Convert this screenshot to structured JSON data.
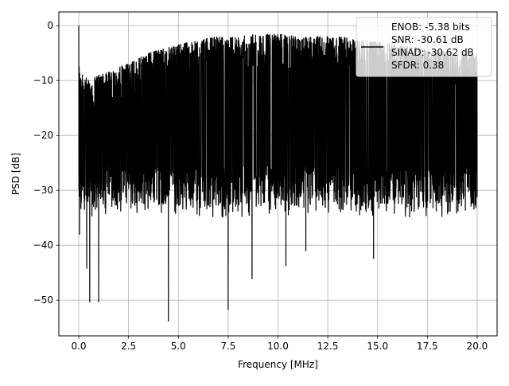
{
  "chart_data": {
    "type": "line",
    "title": "",
    "xlabel": "Frequency [MHz]",
    "ylabel": "PSD [dB]",
    "xlim": [
      -1.0,
      21.0
    ],
    "ylim": [
      -56.5,
      2.5
    ],
    "xticks": [
      0.0,
      2.5,
      5.0,
      7.5,
      10.0,
      12.5,
      15.0,
      17.5,
      20.0
    ],
    "xtick_labels": [
      "0.0",
      "2.5",
      "5.0",
      "7.5",
      "10.0",
      "12.5",
      "15.0",
      "17.5",
      "20.0"
    ],
    "yticks": [
      0,
      -10,
      -20,
      -30,
      -40,
      -50
    ],
    "ytick_labels": [
      "0",
      "−10",
      "−20",
      "−30",
      "−40",
      "−50"
    ],
    "grid": true,
    "legend": {
      "placement": "upper-right",
      "entries": [
        "ENOB: -5.38 bits",
        "SNR: -30.61 dB",
        "SINAD: -30.62 dB",
        "SFDR: 0.38"
      ]
    },
    "series": [
      {
        "color": "#000000",
        "x_range": [
          0.0,
          20.0
        ],
        "peak": {
          "x": 0.0,
          "y": 0.0
        },
        "upper_envelope": {
          "x": [
            0.0,
            0.5,
            1.0,
            1.5,
            2.0,
            2.5,
            3.0,
            3.5,
            4.0,
            4.5,
            5.0,
            5.5,
            6.0,
            7.0,
            8.0,
            9.0,
            10.0,
            11.0,
            12.0,
            13.0,
            14.0,
            15.0,
            16.0,
            17.0,
            18.0,
            19.0,
            20.0
          ],
          "y": [
            -8,
            -10,
            -9,
            -8.5,
            -7.5,
            -7,
            -6,
            -5,
            -4.5,
            -4,
            -3.5,
            -3,
            -2.5,
            -2,
            -2,
            -1.5,
            -1.5,
            -2,
            -2,
            -2,
            -2.5,
            -3,
            -3.5,
            -4,
            -4.5,
            -5,
            -5
          ]
        },
        "band_center_db": -20,
        "notable_minima": [
          {
            "x": 0.4,
            "y": -44.2
          },
          {
            "x": 0.55,
            "y": -50.3
          },
          {
            "x": 1.0,
            "y": -50.3
          },
          {
            "x": 4.5,
            "y": -53.8
          },
          {
            "x": 7.5,
            "y": -51.7
          },
          {
            "x": 8.7,
            "y": -46.1
          },
          {
            "x": 10.4,
            "y": -43.7
          },
          {
            "x": 11.4,
            "y": -41.0
          },
          {
            "x": 14.8,
            "y": -42.4
          }
        ]
      }
    ]
  }
}
